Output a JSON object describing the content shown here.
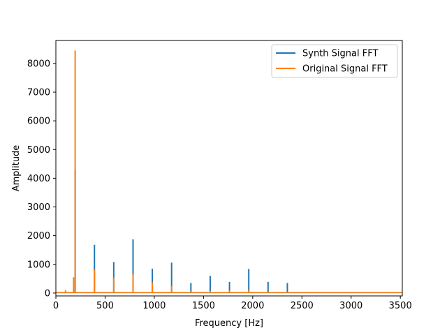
{
  "chart_data": {
    "type": "line",
    "title": "",
    "xlabel": "Frequency [Hz]",
    "ylabel": "Amplitude",
    "xlim": [
      0,
      3520
    ],
    "ylim": [
      -100,
      8800
    ],
    "xticks": [
      0,
      500,
      1000,
      1500,
      2000,
      2500,
      3000,
      3500
    ],
    "yticks": [
      0,
      1000,
      2000,
      3000,
      4000,
      5000,
      6000,
      7000,
      8000
    ],
    "xtick_labels": [
      "0",
      "500",
      "1000",
      "1500",
      "2000",
      "2500",
      "3000",
      "3500"
    ],
    "ytick_labels": [
      "0",
      "1000",
      "2000",
      "3000",
      "4000",
      "5000",
      "6000",
      "7000",
      "8000"
    ],
    "grid": false,
    "legend_position": "top-right",
    "series": [
      {
        "name": "Synth Signal FFT",
        "color": "#1f77b4",
        "peaks": [
          {
            "freq": 196,
            "amp": 4300
          },
          {
            "freq": 392,
            "amp": 1680
          },
          {
            "freq": 588,
            "amp": 1080
          },
          {
            "freq": 784,
            "amp": 1870
          },
          {
            "freq": 980,
            "amp": 850
          },
          {
            "freq": 1176,
            "amp": 1060
          },
          {
            "freq": 1372,
            "amp": 350
          },
          {
            "freq": 1568,
            "amp": 600
          },
          {
            "freq": 1764,
            "amp": 390
          },
          {
            "freq": 1960,
            "amp": 840
          },
          {
            "freq": 2156,
            "amp": 390
          },
          {
            "freq": 2352,
            "amp": 350
          }
        ]
      },
      {
        "name": "Original Signal FFT",
        "color": "#ff7f0e",
        "peaks": [
          {
            "freq": 98,
            "amp": 100
          },
          {
            "freq": 180,
            "amp": 550
          },
          {
            "freq": 196,
            "amp": 8450
          },
          {
            "freq": 392,
            "amp": 820
          },
          {
            "freq": 588,
            "amp": 540
          },
          {
            "freq": 784,
            "amp": 650
          },
          {
            "freq": 980,
            "amp": 370
          },
          {
            "freq": 1176,
            "amp": 250
          },
          {
            "freq": 1372,
            "amp": 60
          },
          {
            "freq": 1568,
            "amp": 70
          },
          {
            "freq": 1764,
            "amp": 90
          },
          {
            "freq": 1960,
            "amp": 110
          },
          {
            "freq": 2156,
            "amp": 40
          },
          {
            "freq": 2352,
            "amp": 30
          },
          {
            "freq": 2580,
            "amp": 40
          },
          {
            "freq": 3400,
            "amp": 25
          }
        ]
      }
    ]
  }
}
